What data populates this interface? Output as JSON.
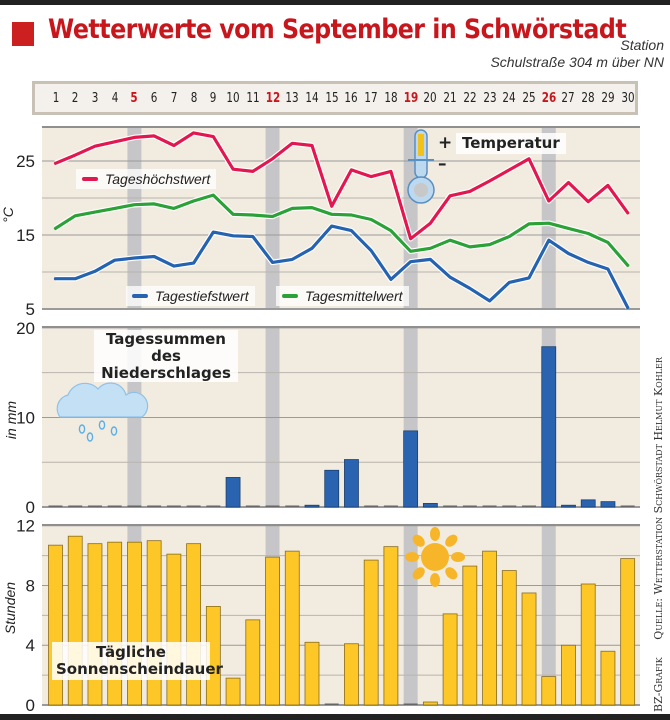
{
  "header": {
    "title": "Wetterwerte vom September in Schwörstadt",
    "station_line1": "Station",
    "station_line2": "Schulstraße 304 m über NN"
  },
  "days": [
    "1",
    "2",
    "3",
    "4",
    "5",
    "6",
    "7",
    "8",
    "9",
    "10",
    "11",
    "12",
    "13",
    "14",
    "15",
    "16",
    "17",
    "18",
    "19",
    "20",
    "21",
    "22",
    "23",
    "24",
    "25",
    "26",
    "27",
    "28",
    "29",
    "30"
  ],
  "sundays": [
    5,
    12,
    19,
    26
  ],
  "colors": {
    "title_red": "#c8161d",
    "max_line": "#e3174f",
    "mean_line": "#2ca137",
    "min_line": "#2563b0",
    "precip_bar": "#2a64b0",
    "sun_bar": "#fdc727",
    "plot_bg": "#f2ebe0",
    "sunday_band": "#c6c6c8"
  },
  "credits": {
    "source": "Quelle: Wetterstation Schwörstadt Helmut Kohler",
    "graphic": "BZ-Grafik"
  },
  "chart_data": [
    {
      "type": "line",
      "title": "Temperatur",
      "ylabel": "°C",
      "ylim": [
        5,
        29.5
      ],
      "yticks": [
        "25",
        "15",
        "5"
      ],
      "ytick_values": [
        25,
        15,
        5
      ],
      "grid": true,
      "x": [
        1,
        2,
        3,
        4,
        5,
        6,
        7,
        8,
        9,
        10,
        11,
        12,
        13,
        14,
        15,
        16,
        17,
        18,
        19,
        20,
        21,
        22,
        23,
        24,
        25,
        26,
        27,
        28,
        29,
        30
      ],
      "series": [
        {
          "name": "Tageshöchstwert",
          "color": "#e3174f",
          "values": [
            24.7,
            25.8,
            27.0,
            27.6,
            28.2,
            28.4,
            27.1,
            28.8,
            28.3,
            23.9,
            23.6,
            25.3,
            27.4,
            27.1,
            18.9,
            23.8,
            22.9,
            23.6,
            14.5,
            16.6,
            20.3,
            20.9,
            22.3,
            23.8,
            25.3,
            19.6,
            22.1,
            19.5,
            21.7,
            18.0
          ]
        },
        {
          "name": "Tagesmittelwert",
          "color": "#2ca137",
          "values": [
            15.9,
            17.6,
            18.1,
            18.6,
            19.1,
            19.2,
            18.6,
            19.6,
            20.4,
            17.8,
            17.7,
            17.5,
            18.6,
            18.7,
            17.8,
            17.7,
            17.1,
            15.6,
            12.8,
            13.2,
            14.3,
            13.4,
            13.7,
            14.8,
            16.5,
            16.6,
            15.9,
            15.2,
            14.0,
            10.9
          ]
        },
        {
          "name": "Tagestiefstwert",
          "color": "#2563b0",
          "values": [
            9.1,
            9.1,
            10.1,
            11.6,
            11.9,
            12.1,
            10.8,
            11.2,
            15.4,
            14.9,
            14.8,
            11.3,
            11.7,
            13.2,
            16.2,
            15.6,
            12.9,
            9.0,
            11.4,
            11.7,
            9.3,
            7.8,
            6.1,
            8.6,
            9.2,
            14.3,
            12.5,
            11.3,
            10.4,
            5.2
          ]
        }
      ],
      "legend": [
        "Tageshöchstwert",
        "Tagestiefstwert",
        "Tagesmittelwert"
      ]
    },
    {
      "type": "bar",
      "title": "Tagessummen des Niederschlages",
      "ylabel": "in mm",
      "ylim": [
        0,
        20
      ],
      "yticks": [
        "20",
        "10",
        "0"
      ],
      "ytick_values": [
        20,
        10,
        0
      ],
      "grid": true,
      "categories": [
        "1",
        "2",
        "3",
        "4",
        "5",
        "6",
        "7",
        "8",
        "9",
        "10",
        "11",
        "12",
        "13",
        "14",
        "15",
        "16",
        "17",
        "18",
        "19",
        "20",
        "21",
        "22",
        "23",
        "24",
        "25",
        "26",
        "27",
        "28",
        "29",
        "30"
      ],
      "values": [
        0,
        0,
        0,
        0,
        0,
        0,
        0,
        0,
        0,
        3.3,
        0,
        0,
        0,
        0.2,
        4.1,
        5.3,
        0,
        0,
        8.5,
        0.4,
        0,
        0,
        0,
        0,
        0,
        17.9,
        0.2,
        0.8,
        0.6,
        0
      ]
    },
    {
      "type": "bar",
      "title": "Tägliche Sonnenscheindauer",
      "ylabel": "Stunden",
      "ylim": [
        0,
        12
      ],
      "yticks": [
        "12",
        "8",
        "4",
        "0"
      ],
      "ytick_values": [
        12,
        8,
        4,
        0
      ],
      "grid": true,
      "categories": [
        "1",
        "2",
        "3",
        "4",
        "5",
        "6",
        "7",
        "8",
        "9",
        "10",
        "11",
        "12",
        "13",
        "14",
        "15",
        "16",
        "17",
        "18",
        "19",
        "20",
        "21",
        "22",
        "23",
        "24",
        "25",
        "26",
        "27",
        "28",
        "29",
        "30"
      ],
      "values": [
        10.7,
        11.3,
        10.8,
        10.9,
        10.9,
        11.0,
        10.1,
        10.8,
        6.6,
        1.8,
        5.7,
        9.9,
        10.3,
        4.2,
        0,
        4.1,
        9.7,
        10.6,
        0,
        0.2,
        6.1,
        9.3,
        10.3,
        9.0,
        7.5,
        1.9,
        4.0,
        8.1,
        3.6,
        9.8
      ]
    }
  ],
  "labels": {
    "temp_title": "Temperatur",
    "precip_title_line1": "Tagessummen des",
    "precip_title_line2": "Niederschlages",
    "sun_title_line1": "Tägliche",
    "sun_title_line2": "Sonnenscheindauer",
    "temp_axis": "°C",
    "precip_axis": "in mm",
    "sun_axis": "Stunden",
    "thermo_plus": "+",
    "thermo_minus": "–"
  }
}
